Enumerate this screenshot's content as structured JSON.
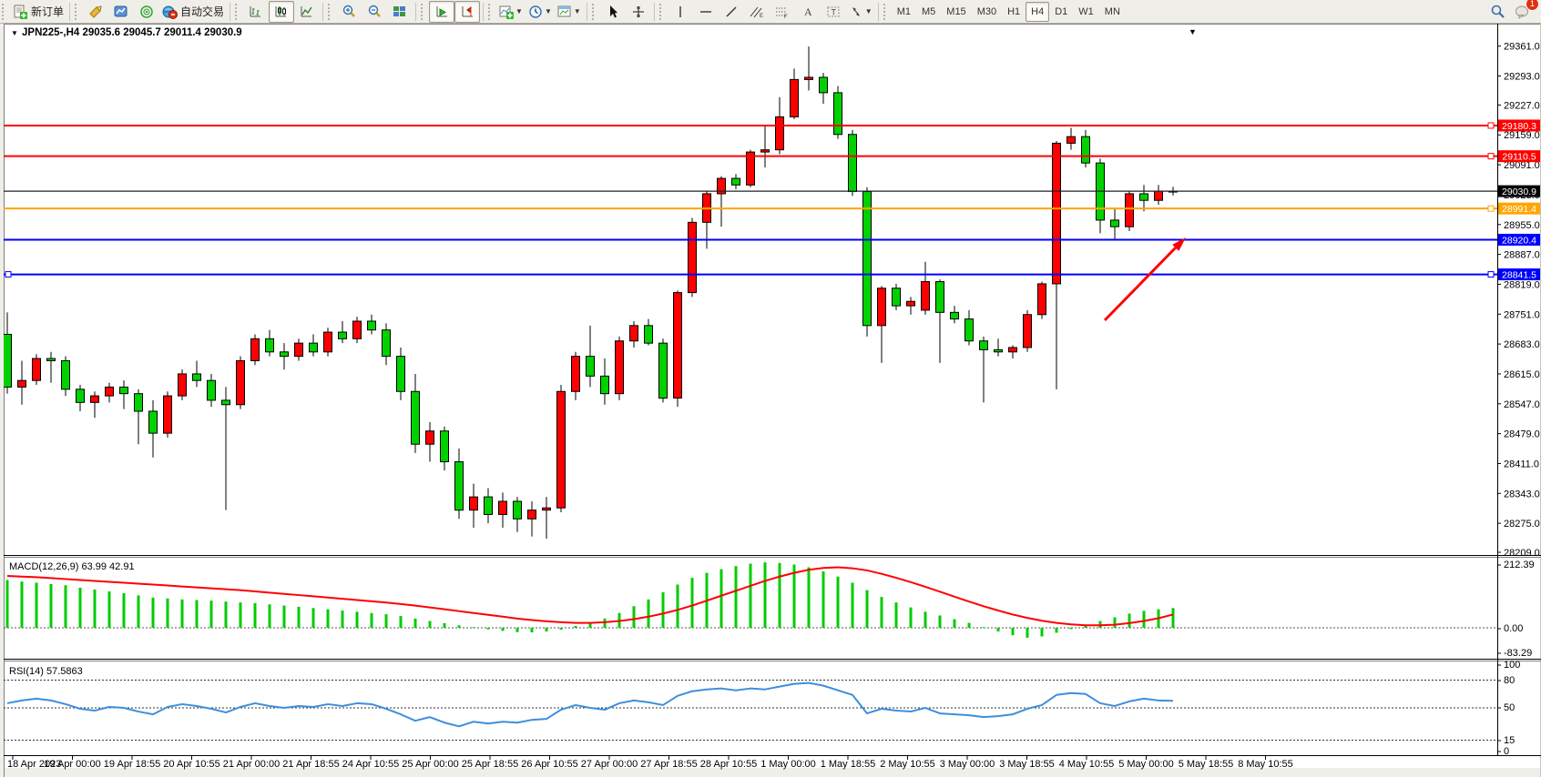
{
  "toolbar": {
    "new_order": "新订单",
    "auto_trading": "自动交易",
    "timeframes": [
      "M1",
      "M5",
      "M15",
      "M30",
      "H1",
      "H4",
      "D1",
      "W1",
      "MN"
    ],
    "active_timeframe": "H4",
    "notification_count": "1"
  },
  "chart": {
    "symbol": "JPN225-,H4",
    "ohlc_line": "29035.6 29045.7 29011.4 29030.9",
    "price_ticks": [
      "29361.0",
      "29293.0",
      "29227.0",
      "29159.0",
      "29091.0",
      "29023.0",
      "28955.0",
      "28887.0",
      "28819.0",
      "28751.0",
      "28683.0",
      "28615.0",
      "28547.0",
      "28479.0",
      "28411.0",
      "28343.0",
      "28275.0",
      "28209.0"
    ],
    "time_labels": [
      "18 Apr 2023",
      "19 Apr 00:00",
      "19 Apr 18:55",
      "20 Apr 10:55",
      "21 Apr 00:00",
      "21 Apr 18:55",
      "24 Apr 10:55",
      "25 Apr 00:00",
      "25 Apr 18:55",
      "26 Apr 10:55",
      "27 Apr 00:00",
      "27 Apr 18:55",
      "28 Apr 10:55",
      "1 May 00:00",
      "1 May 18:55",
      "2 May 10:55",
      "3 May 00:00",
      "3 May 18:55",
      "4 May 10:55",
      "5 May 00:00",
      "5 May 18:55",
      "8 May 10:55"
    ],
    "h_lines": [
      {
        "price": 29180.3,
        "label": "29180.3",
        "color": "#FF0000",
        "handle_right": true
      },
      {
        "price": 29110.5,
        "label": "29110.5",
        "color": "#FF0000",
        "handle_right": true
      },
      {
        "price": 28991.4,
        "label": "28991.4",
        "color": "#FFA500",
        "handle_right": true
      },
      {
        "price": 28920.4,
        "label": "28920.4",
        "color": "#0000FF",
        "handle_right": false
      },
      {
        "price": 28841.5,
        "label": "28841.5",
        "color": "#0000FF",
        "handle_right": true
      }
    ],
    "bid_line": {
      "price": 29030.9,
      "label": "29030.9",
      "color": "#000000"
    },
    "macd_label": "MACD(12,26,9) 63.99 42.91",
    "macd_axis": [
      "212.39",
      "0.00",
      "-83.29"
    ],
    "rsi_label": "RSI(14) 57.5863",
    "rsi_axis": [
      "100",
      "80",
      "50",
      "15",
      "0"
    ],
    "colors": {
      "up_candle": "#FF0000",
      "down_candle": "#00D200",
      "macd_hist": "#00CC00",
      "macd_signal": "#FF0000",
      "rsi_line": "#3E8EDE",
      "arrow": "#FF0000"
    }
  },
  "chart_data": [
    {
      "type": "candlestick",
      "title": "JPN225-,H4",
      "note": "Chinese color convention: red = bullish, green = bearish",
      "ylim": [
        28209.0,
        29361.0
      ],
      "x_axis_labels": [
        "18 Apr 2023",
        "19 Apr 00:00",
        "19 Apr 18:55",
        "20 Apr 10:55",
        "21 Apr 00:00",
        "21 Apr 18:55",
        "24 Apr 10:55",
        "25 Apr 00:00",
        "25 Apr 18:55",
        "26 Apr 10:55",
        "27 Apr 00:00",
        "27 Apr 18:55",
        "28 Apr 10:55",
        "1 May 00:00",
        "1 May 18:55",
        "2 May 10:55",
        "3 May 00:00",
        "3 May 18:55",
        "4 May 10:55",
        "5 May 00:00",
        "5 May 18:55",
        "8 May 10:55"
      ],
      "ohlc": [
        [
          28705,
          28755,
          28570,
          28585
        ],
        [
          28585,
          28645,
          28545,
          28600
        ],
        [
          28600,
          28660,
          28590,
          28650
        ],
        [
          28650,
          28665,
          28595,
          28645
        ],
        [
          28645,
          28655,
          28565,
          28580
        ],
        [
          28580,
          28590,
          28530,
          28550
        ],
        [
          28550,
          28575,
          28515,
          28565
        ],
        [
          28565,
          28595,
          28550,
          28585
        ],
        [
          28585,
          28600,
          28535,
          28570
        ],
        [
          28570,
          28580,
          28455,
          28530
        ],
        [
          28530,
          28555,
          28425,
          28480
        ],
        [
          28480,
          28575,
          28470,
          28565
        ],
        [
          28565,
          28625,
          28555,
          28615
        ],
        [
          28615,
          28645,
          28585,
          28600
        ],
        [
          28600,
          28615,
          28540,
          28555
        ],
        [
          28555,
          28585,
          28305,
          28545
        ],
        [
          28545,
          28655,
          28535,
          28645
        ],
        [
          28645,
          28705,
          28635,
          28695
        ],
        [
          28695,
          28715,
          28655,
          28665
        ],
        [
          28665,
          28685,
          28625,
          28655
        ],
        [
          28655,
          28695,
          28645,
          28685
        ],
        [
          28685,
          28705,
          28655,
          28665
        ],
        [
          28665,
          28720,
          28655,
          28710
        ],
        [
          28710,
          28735,
          28685,
          28695
        ],
        [
          28695,
          28745,
          28685,
          28735
        ],
        [
          28735,
          28750,
          28705,
          28715
        ],
        [
          28715,
          28730,
          28635,
          28655
        ],
        [
          28655,
          28675,
          28555,
          28575
        ],
        [
          28575,
          28615,
          28435,
          28455
        ],
        [
          28455,
          28505,
          28415,
          28485
        ],
        [
          28485,
          28495,
          28395,
          28415
        ],
        [
          28415,
          28445,
          28285,
          28305
        ],
        [
          28305,
          28365,
          28265,
          28335
        ],
        [
          28335,
          28355,
          28275,
          28295
        ],
        [
          28295,
          28345,
          28265,
          28325
        ],
        [
          28325,
          28335,
          28255,
          28285
        ],
        [
          28285,
          28325,
          28245,
          28305
        ],
        [
          28305,
          28335,
          28240,
          28310
        ],
        [
          28310,
          28590,
          28300,
          28575
        ],
        [
          28575,
          28665,
          28555,
          28655
        ],
        [
          28655,
          28725,
          28585,
          28610
        ],
        [
          28610,
          28650,
          28545,
          28570
        ],
        [
          28570,
          28700,
          28555,
          28690
        ],
        [
          28690,
          28735,
          28675,
          28725
        ],
        [
          28725,
          28740,
          28680,
          28685
        ],
        [
          28685,
          28695,
          28550,
          28560
        ],
        [
          28560,
          28805,
          28540,
          28800
        ],
        [
          28800,
          28970,
          28790,
          28960
        ],
        [
          28960,
          29030,
          28900,
          29025
        ],
        [
          29025,
          29065,
          28950,
          29060
        ],
        [
          29060,
          29070,
          29035,
          29045
        ],
        [
          29045,
          29125,
          29040,
          29120
        ],
        [
          29120,
          29180,
          29085,
          29125
        ],
        [
          29125,
          29245,
          29115,
          29200
        ],
        [
          29200,
          29310,
          29195,
          29285
        ],
        [
          29285,
          29360,
          29260,
          29290
        ],
        [
          29290,
          29300,
          29230,
          29255
        ],
        [
          29255,
          29270,
          29150,
          29160
        ],
        [
          29160,
          29170,
          29020,
          29030
        ],
        [
          29030,
          29040,
          28700,
          28725
        ],
        [
          28725,
          28815,
          28640,
          28810
        ],
        [
          28810,
          28820,
          28760,
          28770
        ],
        [
          28770,
          28790,
          28750,
          28780
        ],
        [
          28760,
          28870,
          28750,
          28825
        ],
        [
          28825,
          28830,
          28640,
          28755
        ],
        [
          28755,
          28770,
          28730,
          28740
        ],
        [
          28740,
          28760,
          28680,
          28690
        ],
        [
          28690,
          28700,
          28550,
          28670
        ],
        [
          28670,
          28695,
          28655,
          28665
        ],
        [
          28665,
          28680,
          28650,
          28675
        ],
        [
          28675,
          28760,
          28665,
          28750
        ],
        [
          28750,
          28825,
          28740,
          28820
        ],
        [
          28820,
          29145,
          28580,
          29140
        ],
        [
          29140,
          29175,
          29125,
          29155
        ],
        [
          29155,
          29170,
          29085,
          29095
        ],
        [
          29095,
          29105,
          28935,
          28965
        ],
        [
          28965,
          28990,
          28920,
          28950
        ],
        [
          28950,
          29030,
          28940,
          29025
        ],
        [
          29025,
          29045,
          28985,
          29010
        ],
        [
          29010,
          29045,
          29000,
          29031
        ],
        [
          29031,
          29041,
          29021,
          29031
        ]
      ]
    },
    {
      "type": "bar",
      "name": "MACD(12,26,9)",
      "current_values": [
        63.99,
        42.91
      ],
      "ylim": [
        -83.29,
        212.39
      ],
      "histogram": [
        155,
        150,
        146,
        142,
        138,
        130,
        124,
        118,
        112,
        105,
        98,
        95,
        92,
        90,
        88,
        85,
        82,
        80,
        76,
        72,
        68,
        64,
        60,
        56,
        52,
        48,
        44,
        38,
        30,
        22,
        15,
        8,
        2,
        -5,
        -10,
        -14,
        -15,
        -12,
        -6,
        6,
        18,
        30,
        48,
        70,
        92,
        115,
        140,
        162,
        178,
        190,
        200,
        208,
        212,
        210,
        205,
        196,
        183,
        166,
        146,
        122,
        100,
        82,
        66,
        52,
        40,
        28,
        16,
        2,
        -12,
        -24,
        -32,
        -28,
        -16,
        -4,
        10,
        22,
        34,
        46,
        55,
        60,
        64
      ],
      "signal": [
        168,
        166,
        164,
        161,
        158,
        155,
        152,
        149,
        146,
        143,
        140,
        137,
        134,
        131,
        128,
        125,
        122,
        118,
        114,
        110,
        106,
        102,
        98,
        94,
        90,
        86,
        82,
        77,
        72,
        66,
        60,
        54,
        48,
        42,
        36,
        30,
        25,
        21,
        18,
        16,
        16,
        18,
        22,
        28,
        36,
        46,
        58,
        72,
        88,
        104,
        120,
        136,
        152,
        166,
        178,
        188,
        194,
        196,
        193,
        186,
        175,
        162,
        148,
        133,
        117,
        101,
        85,
        70,
        56,
        43,
        32,
        23,
        16,
        11,
        8,
        8,
        10,
        15,
        22,
        31,
        43
      ]
    },
    {
      "type": "line",
      "name": "RSI(14)",
      "current_value": 57.5863,
      "ylim": [
        0,
        100
      ],
      "levels": [
        80,
        50,
        15
      ],
      "values": [
        55,
        58,
        60,
        58,
        54,
        49,
        47,
        51,
        50,
        46,
        43,
        51,
        54,
        52,
        49,
        45,
        51,
        55,
        52,
        50,
        52,
        51,
        54,
        52,
        55,
        54,
        49,
        43,
        36,
        40,
        34,
        30,
        35,
        33,
        35,
        34,
        37,
        38,
        48,
        53,
        50,
        48,
        55,
        58,
        56,
        53,
        63,
        68,
        70,
        71,
        69,
        71,
        70,
        73,
        76,
        77,
        74,
        69,
        64,
        44,
        49,
        47,
        46,
        50,
        44,
        43,
        42,
        40,
        41,
        43,
        49,
        53,
        64,
        66,
        65,
        55,
        52,
        57,
        60,
        58,
        57.6
      ]
    }
  ]
}
